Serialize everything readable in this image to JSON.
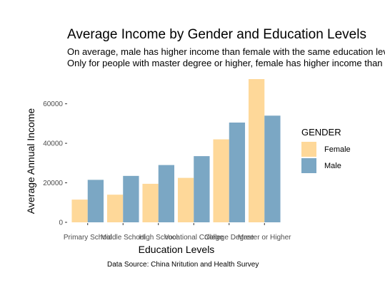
{
  "chart_data": {
    "type": "bar",
    "title": "Average Income by Gender and Education Levels",
    "subtitle_lines": [
      "On average, male has higher income than female with the same education level.",
      "Only for people with master degree or higher, female has higher income than male."
    ],
    "xlabel": "Education Levels",
    "ylabel": "Average Annual Income",
    "caption": "Data Source: China Nritution and Health Survey",
    "categories": [
      "Primary School",
      "Middle School",
      "High School",
      "Vocational College",
      "College Degree",
      "Master or Higher"
    ],
    "series": [
      {
        "name": "Female",
        "color": "#FED899",
        "values": [
          11500,
          14000,
          19500,
          22500,
          42000,
          72500
        ]
      },
      {
        "name": "Male",
        "color": "#7BA7C4",
        "values": [
          21500,
          23500,
          29000,
          33500,
          50500,
          54000
        ]
      }
    ],
    "ylim": [
      0,
      72500
    ],
    "yticks": [
      0,
      20000,
      40000,
      60000
    ],
    "ytick_labels": [
      "0",
      "20000",
      "40000",
      "60000"
    ],
    "legend": {
      "title": "GENDER",
      "position": "right"
    },
    "grid": false
  }
}
